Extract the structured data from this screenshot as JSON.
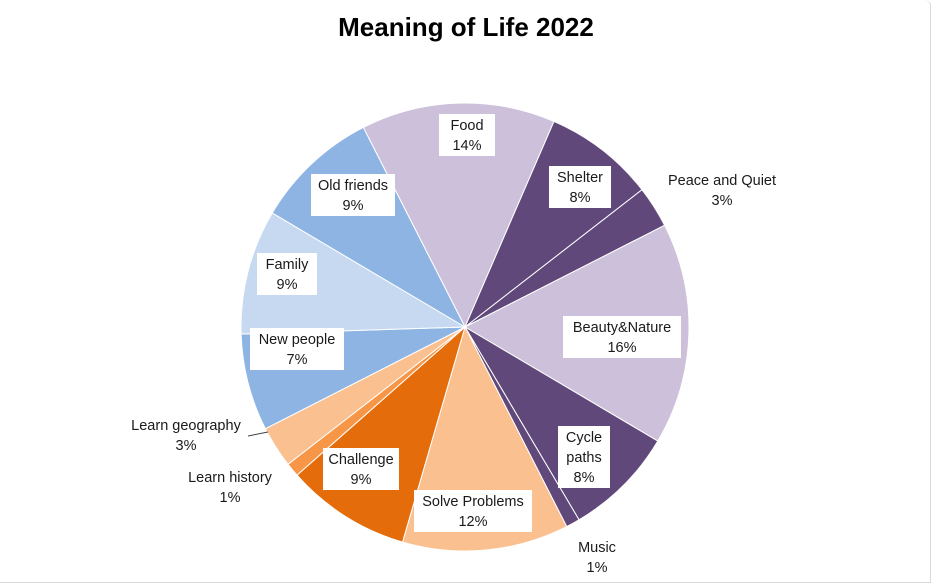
{
  "chart_data": {
    "type": "pie",
    "title": "Meaning of Life 2022",
    "slices": [
      {
        "label": "Food",
        "lines": [
          "Food"
        ],
        "value": 14,
        "pct_label": "14%",
        "color": "#ccc0da",
        "label_style": "inside"
      },
      {
        "label": "Shelter",
        "lines": [
          "Shelter"
        ],
        "value": 8,
        "pct_label": "8%",
        "color": "#60497a",
        "label_style": "inside"
      },
      {
        "label": "Peace and Quiet",
        "lines": [
          "Peace and Quiet"
        ],
        "value": 3,
        "pct_label": "3%",
        "color": "#60497a",
        "label_style": "outside"
      },
      {
        "label": "Beauty&Nature",
        "lines": [
          "Beauty&Nature"
        ],
        "value": 16,
        "pct_label": "16%",
        "color": "#ccc0da",
        "label_style": "inside"
      },
      {
        "label": "Cycle paths",
        "lines": [
          "Cycle",
          "paths"
        ],
        "value": 8,
        "pct_label": "8%",
        "color": "#60497a",
        "label_style": "inside"
      },
      {
        "label": "Music",
        "lines": [
          "Music"
        ],
        "value": 1,
        "pct_label": "1%",
        "color": "#60497a",
        "label_style": "outside"
      },
      {
        "label": "Solve Problems",
        "lines": [
          "Solve Problems"
        ],
        "value": 12,
        "pct_label": "12%",
        "color": "#fac090",
        "label_style": "inside"
      },
      {
        "label": "Challenge",
        "lines": [
          "Challenge"
        ],
        "value": 9,
        "pct_label": "9%",
        "color": "#e46c0a",
        "label_style": "inside"
      },
      {
        "label": "Learn history",
        "lines": [
          "Learn history"
        ],
        "value": 1,
        "pct_label": "1%",
        "color": "#f79646",
        "label_style": "outside"
      },
      {
        "label": "Learn geography",
        "lines": [
          "Learn geography"
        ],
        "value": 3,
        "pct_label": "3%",
        "color": "#fac090",
        "label_style": "outside"
      },
      {
        "label": "New people",
        "lines": [
          "New people"
        ],
        "value": 7,
        "pct_label": "7%",
        "color": "#8eb4e3",
        "label_style": "inside"
      },
      {
        "label": "Family",
        "lines": [
          "Family"
        ],
        "value": 9,
        "pct_label": "9%",
        "color": "#c6d9f1",
        "label_style": "inside"
      },
      {
        "label": "Old friends",
        "lines": [
          "Old friends"
        ],
        "value": 9,
        "pct_label": "9%",
        "color": "#8eb4e3",
        "label_style": "inside"
      }
    ],
    "legend": "none",
    "start_angle_deg": -27,
    "direction": "clockwise"
  }
}
